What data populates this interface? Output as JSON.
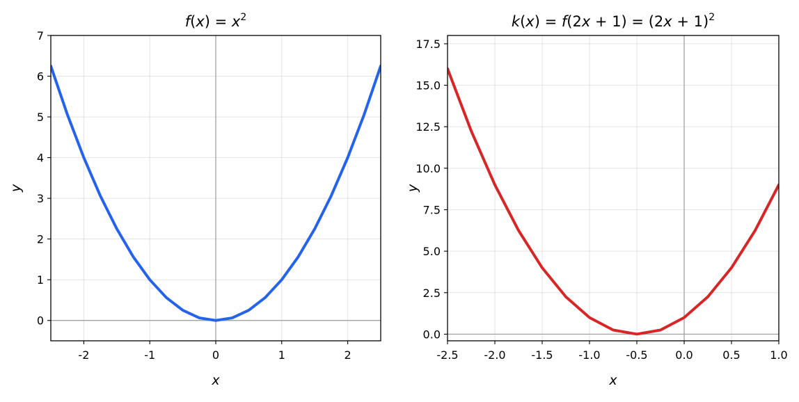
{
  "chart_data": [
    {
      "type": "line",
      "title": {
        "parts": [
          {
            "t": "f",
            "i": true
          },
          {
            "t": "(",
            "i": false
          },
          {
            "t": "x",
            "i": true
          },
          {
            "t": ") = ",
            "i": false
          },
          {
            "t": "x",
            "i": true
          },
          {
            "t": "2",
            "i": false,
            "sup": true
          }
        ]
      },
      "xlabel": "x",
      "ylabel": "y",
      "xlim": [
        -2.5,
        2.5
      ],
      "ylim": [
        -0.5,
        7
      ],
      "xticks": [
        -2,
        -1,
        0,
        1,
        2
      ],
      "xtick_labels": [
        "-2",
        "-1",
        "0",
        "1",
        "2"
      ],
      "yticks": [
        0,
        1,
        2,
        3,
        4,
        5,
        6,
        7
      ],
      "ytick_labels": [
        "0",
        "1",
        "2",
        "3",
        "4",
        "5",
        "6",
        "7"
      ],
      "grid": true,
      "reference_lines": {
        "x": 0,
        "y": 0
      },
      "series": [
        {
          "color": "#2563eb",
          "x": [
            -2.5,
            -2.25,
            -2.0,
            -1.75,
            -1.5,
            -1.25,
            -1.0,
            -0.75,
            -0.5,
            -0.25,
            0.0,
            0.25,
            0.5,
            0.75,
            1.0,
            1.25,
            1.5,
            1.75,
            2.0,
            2.25,
            2.5
          ],
          "y": [
            6.25,
            5.0625,
            4.0,
            3.0625,
            2.25,
            1.5625,
            1.0,
            0.5625,
            0.25,
            0.0625,
            0.0,
            0.0625,
            0.25,
            0.5625,
            1.0,
            1.5625,
            2.25,
            3.0625,
            4.0,
            5.0625,
            6.25
          ]
        }
      ]
    },
    {
      "type": "line",
      "title": {
        "parts": [
          {
            "t": "k",
            "i": true
          },
          {
            "t": "(",
            "i": false
          },
          {
            "t": "x",
            "i": true
          },
          {
            "t": ") = ",
            "i": false
          },
          {
            "t": "f",
            "i": true
          },
          {
            "t": "(2",
            "i": false
          },
          {
            "t": "x",
            "i": true
          },
          {
            "t": " + 1) = (2",
            "i": false
          },
          {
            "t": "x",
            "i": true
          },
          {
            "t": " + 1)",
            "i": false
          },
          {
            "t": "2",
            "i": false,
            "sup": true
          }
        ]
      },
      "xlabel": "x",
      "ylabel": "y",
      "xlim": [
        -2.5,
        1.0
      ],
      "ylim": [
        -0.4,
        18.0
      ],
      "xticks": [
        -2.5,
        -2.0,
        -1.5,
        -1.0,
        -0.5,
        0.0,
        0.5,
        1.0
      ],
      "xtick_labels": [
        "-2.5",
        "-2.0",
        "-1.5",
        "-1.0",
        "-0.5",
        "0.0",
        "0.5",
        "1.0"
      ],
      "yticks": [
        0.0,
        2.5,
        5.0,
        7.5,
        10.0,
        12.5,
        15.0,
        17.5
      ],
      "ytick_labels": [
        "0.0",
        "2.5",
        "5.0",
        "7.5",
        "10.0",
        "12.5",
        "15.0",
        "17.5"
      ],
      "grid": true,
      "reference_lines": {
        "x": 0,
        "y": 0
      },
      "series": [
        {
          "color": "#d62728",
          "x": [
            -2.5,
            -2.25,
            -2.0,
            -1.75,
            -1.5,
            -1.25,
            -1.0,
            -0.75,
            -0.5,
            -0.25,
            0.0,
            0.25,
            0.5,
            0.75,
            1.0
          ],
          "y": [
            16.0,
            12.25,
            9.0,
            6.25,
            4.0,
            2.25,
            1.0,
            0.25,
            0.0,
            0.25,
            1.0,
            2.25,
            4.0,
            6.25,
            9.0
          ]
        }
      ]
    }
  ]
}
